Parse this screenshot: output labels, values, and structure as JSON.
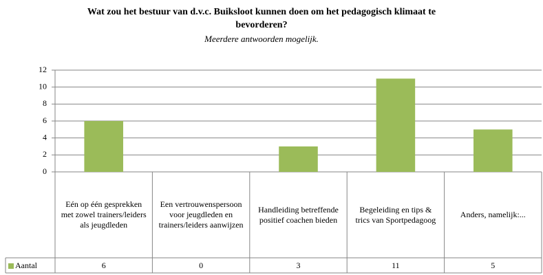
{
  "chart_data": {
    "type": "bar",
    "title": "Wat zou het bestuur van d.v.c. Buiksloot kunnen doen om het pedagogisch klimaat te bevorderen?",
    "subtitle": "Meerdere antwoorden mogelijk.",
    "categories": [
      "Eén op één gesprekken met zowel trainers/leiders als jeugdleden",
      "Een vertrouwenspersoon voor jeugdleden en trainers/leiders aanwijzen",
      "Handleiding betreffende positief coachen bieden",
      "Begeleiding en tips & trics van Sportpedagoog",
      "Anders, namelijk:..."
    ],
    "series": [
      {
        "name": "Aantal",
        "color": "#9bbb59",
        "values": [
          6,
          0,
          3,
          11,
          5
        ]
      }
    ],
    "ylim": [
      0,
      12
    ],
    "yticks": [
      0,
      2,
      4,
      6,
      8,
      10,
      12
    ],
    "grid": true,
    "data_table": true
  }
}
